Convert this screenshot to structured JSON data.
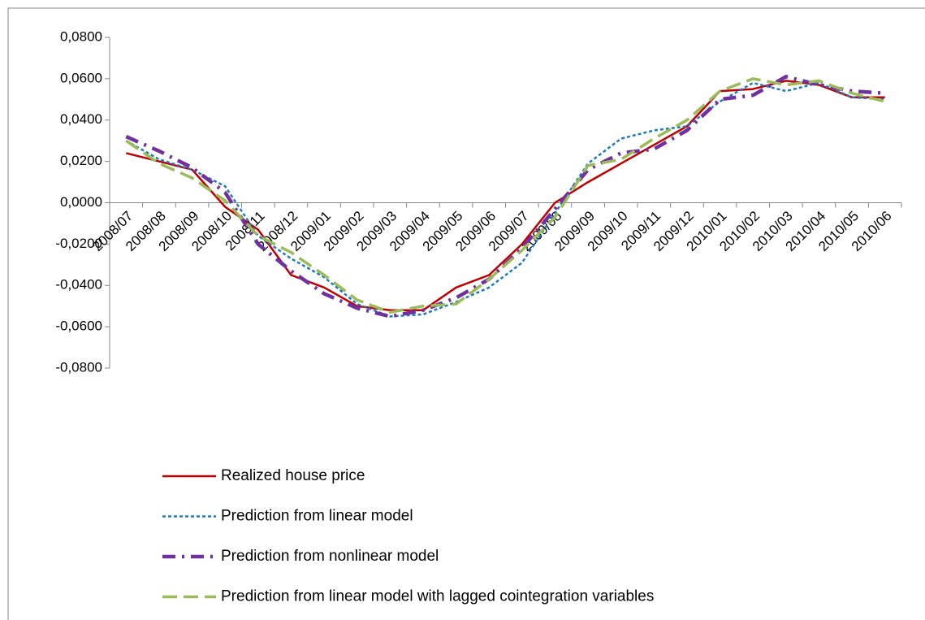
{
  "chart_data": {
    "type": "line",
    "categories": [
      "2008/07",
      "2008/08",
      "2008/09",
      "2008/10",
      "2008/11",
      "2008/12",
      "2009/01",
      "2009/02",
      "2009/03",
      "2009/04",
      "2009/05",
      "2009/06",
      "2009/07",
      "2009/08",
      "2009/09",
      "2009/10",
      "2009/11",
      "2009/12",
      "2010/01",
      "2010/02",
      "2010/03",
      "2010/04",
      "2010/05",
      "2010/06"
    ],
    "series": [
      {
        "name": "Realized house price",
        "color": "#c00000",
        "values": [
          0.024,
          0.02,
          0.016,
          -0.002,
          -0.013,
          -0.035,
          -0.041,
          -0.05,
          -0.052,
          -0.052,
          -0.041,
          -0.035,
          -0.02,
          0.0,
          0.01,
          0.019,
          0.028,
          0.037,
          0.054,
          0.055,
          0.059,
          0.057,
          0.051,
          0.051
        ]
      },
      {
        "name": "Prediction from linear model",
        "color": "#1f7bc1",
        "values": [
          0.03,
          0.021,
          0.016,
          0.008,
          -0.016,
          -0.027,
          -0.036,
          -0.049,
          -0.055,
          -0.054,
          -0.048,
          -0.041,
          -0.029,
          -0.005,
          0.019,
          0.031,
          0.035,
          0.037,
          0.049,
          0.058,
          0.054,
          0.058,
          0.051,
          0.05
        ]
      },
      {
        "name": "Prediction from nonlinear model",
        "color": "#7030a0",
        "values": [
          0.032,
          0.025,
          0.017,
          0.005,
          -0.02,
          -0.033,
          -0.044,
          -0.051,
          -0.055,
          -0.052,
          -0.046,
          -0.037,
          -0.022,
          -0.003,
          0.016,
          0.024,
          0.026,
          0.035,
          0.05,
          0.052,
          0.061,
          0.057,
          0.054,
          0.053
        ]
      },
      {
        "name": "Prediction from linear model with lagged cointegration variables",
        "color": "#9bbb59",
        "values": [
          0.03,
          0.019,
          0.012,
          0.001,
          -0.016,
          -0.024,
          -0.035,
          -0.047,
          -0.053,
          -0.05,
          -0.049,
          -0.037,
          -0.023,
          -0.007,
          0.018,
          0.021,
          0.031,
          0.04,
          0.054,
          0.06,
          0.057,
          0.059,
          0.053,
          0.049
        ]
      }
    ],
    "ylim": [
      -0.08,
      0.08
    ],
    "yticks": [
      {
        "value": -0.08,
        "label": "-0,0800"
      },
      {
        "value": -0.06,
        "label": "-0,0600"
      },
      {
        "value": -0.04,
        "label": "-0,0400"
      },
      {
        "value": -0.02,
        "label": "-0,0200"
      },
      {
        "value": 0,
        "label": "0,0000"
      },
      {
        "value": 0.02,
        "label": "0,0200"
      },
      {
        "value": 0.04,
        "label": "0,0400"
      },
      {
        "value": 0.06,
        "label": "0,0600"
      },
      {
        "value": 0.08,
        "label": "0,0800"
      }
    ],
    "grid": false,
    "legend": "bottom"
  }
}
